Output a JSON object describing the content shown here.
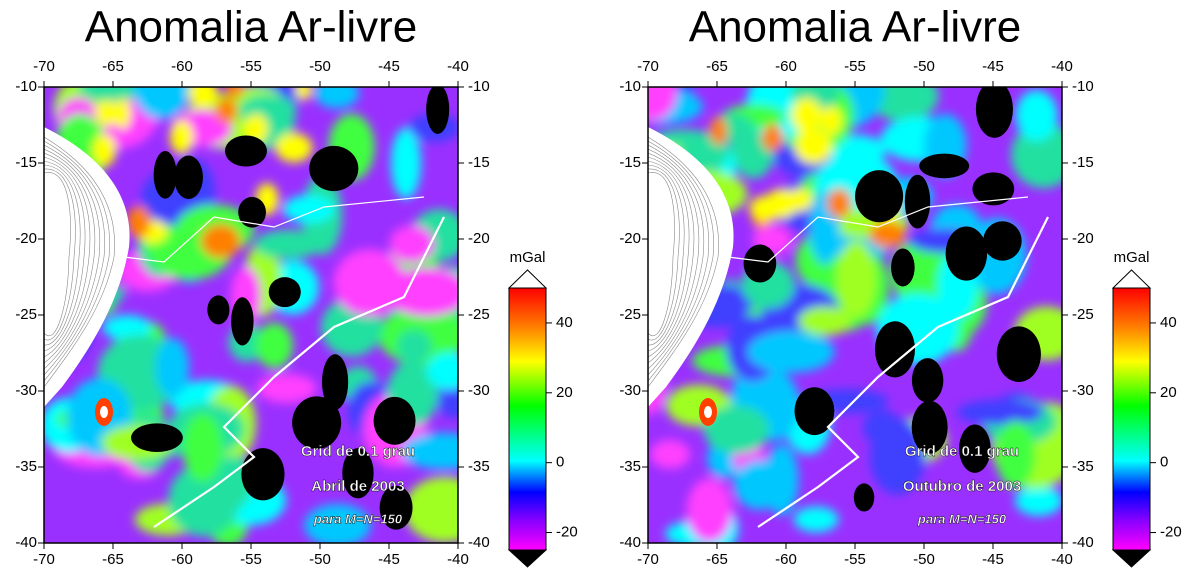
{
  "panels": [
    {
      "title": "Anomalia Ar-livre",
      "xlim": [
        -70,
        -40
      ],
      "ylim": [
        -40,
        -10
      ],
      "xticks": [
        -70,
        -65,
        -60,
        -55,
        -50,
        -45,
        -40
      ],
      "yticks": [
        -10,
        -15,
        -20,
        -25,
        -30,
        -35,
        -40
      ],
      "annotations": [
        "Grid de 0.1 grau",
        "Abril de 2003",
        "para M=N=150"
      ],
      "colorbar": {
        "label": "mGal",
        "lim": [
          -25,
          50
        ],
        "ticks": [
          40,
          20,
          0,
          -20
        ]
      }
    },
    {
      "title": "Anomalia Ar-livre",
      "xlim": [
        -70,
        -40
      ],
      "ylim": [
        -40,
        -10
      ],
      "xticks": [
        -70,
        -65,
        -60,
        -55,
        -50,
        -45,
        -40
      ],
      "yticks": [
        -10,
        -15,
        -20,
        -25,
        -30,
        -35,
        -40
      ],
      "annotations": [
        "Grid de 0.1 grau",
        "Outubro de 2003",
        "para M=N=150"
      ],
      "colorbar": {
        "label": "mGal",
        "lim": [
          -25,
          50
        ],
        "ticks": [
          40,
          20,
          0,
          -20
        ]
      }
    }
  ]
}
